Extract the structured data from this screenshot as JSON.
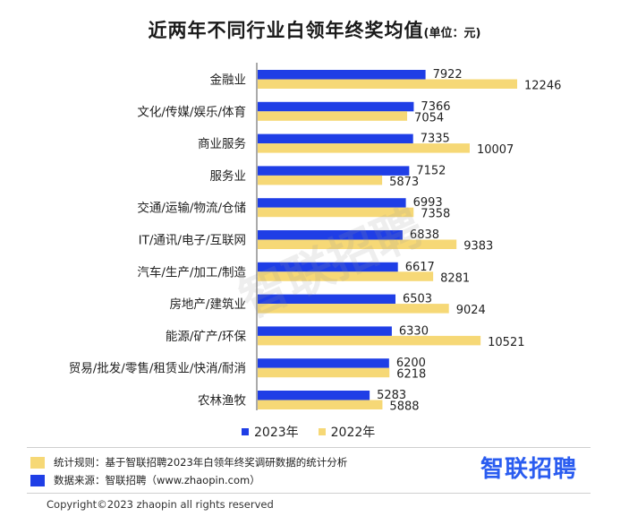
{
  "title": {
    "main": "近两年不同行业白领年终奖均值",
    "unit": "(单位：元)"
  },
  "colors": {
    "series_2023": "#1f3ee6",
    "series_2022": "#f6d876",
    "label": "#222222"
  },
  "chart_data": {
    "type": "bar",
    "orientation": "horizontal",
    "title": "近两年不同行业白领年终奖均值(单位：元)",
    "categories": [
      "金融业",
      "文化/传媒/娱乐/体育",
      "商业服务",
      "服务业",
      "交通/运输/物流/仓储",
      "IT/通讯/电子/互联网",
      "汽车/生产/加工/制造",
      "房地产/建筑业",
      "能源/矿产/环保",
      "贸易/批发/零售/租赁业/快消/耐消",
      "农林渔牧"
    ],
    "series": [
      {
        "name": "2023年",
        "values": [
          7922,
          7366,
          7335,
          7152,
          6993,
          6838,
          6617,
          6503,
          6330,
          6200,
          5283
        ]
      },
      {
        "name": "2022年",
        "values": [
          12246,
          7054,
          10007,
          5873,
          7358,
          9383,
          8281,
          9024,
          10521,
          6218,
          5888
        ]
      }
    ],
    "xlim": [
      0,
      12500
    ],
    "grid": false,
    "legend": "bottom"
  },
  "legend": {
    "label_2023": "2023年",
    "label_2022": "2022年"
  },
  "footer": {
    "rule_text": "统计规则：基于智联招聘2023年白领年终奖调研数据的统计分析",
    "source_text": "数据来源：智联招聘（www.zhaopin.com）",
    "logo": "智联招聘",
    "copyright": "Copyright©2023 zhaopin all rights reserved"
  },
  "watermark": "智联招聘"
}
